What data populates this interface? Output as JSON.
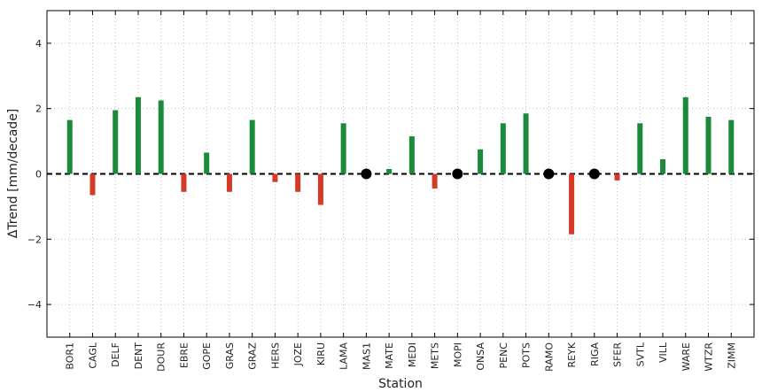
{
  "chart_data": {
    "type": "bar",
    "xlabel": "Station",
    "ylabel": "ΔTrend [mm/decade]",
    "ylim": [
      -5,
      5
    ],
    "yticks": [
      -4,
      -2,
      0,
      2,
      4
    ],
    "grid": true,
    "zero_line": "dashed",
    "categories": [
      "BOR1",
      "CAGL",
      "DELF",
      "DENT",
      "DOUR",
      "EBRE",
      "GOPE",
      "GRAS",
      "GRAZ",
      "HERS",
      "JOZE",
      "KIRU",
      "LAMA",
      "MAS1",
      "MATE",
      "MEDI",
      "METS",
      "MOPI",
      "ONSA",
      "PENC",
      "POTS",
      "RAMO",
      "REYK",
      "RIGA",
      "SFER",
      "SVTL",
      "VILL",
      "WARE",
      "WTZR",
      "ZIMM"
    ],
    "values": [
      1.65,
      -0.65,
      1.95,
      2.35,
      2.25,
      -0.55,
      0.65,
      -0.55,
      1.65,
      -0.25,
      -0.55,
      -0.95,
      1.55,
      0,
      0.15,
      1.15,
      -0.45,
      0,
      0.75,
      1.55,
      1.85,
      0,
      -1.85,
      0,
      -0.2,
      1.55,
      0.45,
      2.35,
      1.75,
      1.65
    ],
    "zero_markers": [
      "MAS1",
      "MOPI",
      "RAMO",
      "RIGA"
    ],
    "colors": {
      "positive": "#1b8a3a",
      "negative": "#d43a27",
      "marker": "#000000"
    }
  }
}
